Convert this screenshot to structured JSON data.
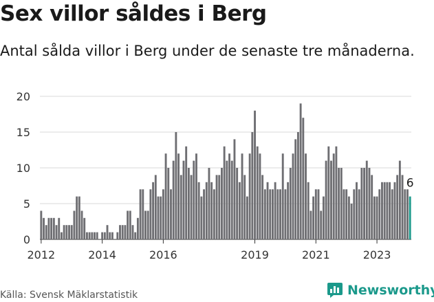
{
  "title": "Sex villor såldes i Berg",
  "subtitle": "Antal sålda villor i Berg under de senaste tre månaderna.",
  "source": "Källa: Svensk Mäklarstatistik",
  "brand": {
    "name": "Newsworthy",
    "icon": "newsworthy-chart-icon",
    "color": "#1b998b"
  },
  "chart_data": {
    "type": "bar",
    "x_start": "2012-01",
    "x_step": "month",
    "values": [
      4,
      3,
      2,
      3,
      3,
      3,
      2,
      3,
      1,
      2,
      2,
      2,
      2,
      4,
      6,
      6,
      4,
      3,
      1,
      1,
      1,
      1,
      1,
      0,
      1,
      1,
      2,
      1,
      1,
      0,
      1,
      2,
      2,
      2,
      4,
      4,
      2,
      1,
      3,
      7,
      7,
      4,
      4,
      7,
      8,
      9,
      6,
      6,
      7,
      12,
      10,
      7,
      11,
      15,
      12,
      9,
      11,
      13,
      10,
      9,
      11,
      12,
      8,
      6,
      7,
      8,
      10,
      8,
      7,
      9,
      9,
      10,
      13,
      11,
      12,
      11,
      14,
      10,
      8,
      12,
      9,
      6,
      12,
      15,
      18,
      13,
      12,
      9,
      7,
      8,
      7,
      7,
      8,
      7,
      7,
      12,
      7,
      8,
      10,
      12,
      14,
      15,
      19,
      17,
      12,
      8,
      4,
      6,
      7,
      7,
      4,
      6,
      11,
      13,
      11,
      12,
      13,
      10,
      10,
      7,
      7,
      6,
      5,
      7,
      8,
      7,
      10,
      10,
      11,
      10,
      9,
      6,
      6,
      7,
      8,
      8,
      8,
      8,
      7,
      8,
      9,
      11,
      9,
      7,
      7,
      6
    ],
    "highlight_last": true,
    "highlight_label": "6",
    "bar_color": "#6e6e72",
    "highlight_color": "#1b998b",
    "y_ticks": [
      0,
      5,
      10,
      15,
      20
    ],
    "ylim": [
      0,
      20
    ],
    "x_tick_labels": [
      "2012",
      "2014",
      "2016",
      "2019",
      "2021",
      "2023"
    ],
    "x_tick_months": [
      "2012-01",
      "2014-01",
      "2016-01",
      "2019-01",
      "2021-01",
      "2023-01"
    ],
    "grid": true,
    "xlabel": "",
    "ylabel": ""
  }
}
